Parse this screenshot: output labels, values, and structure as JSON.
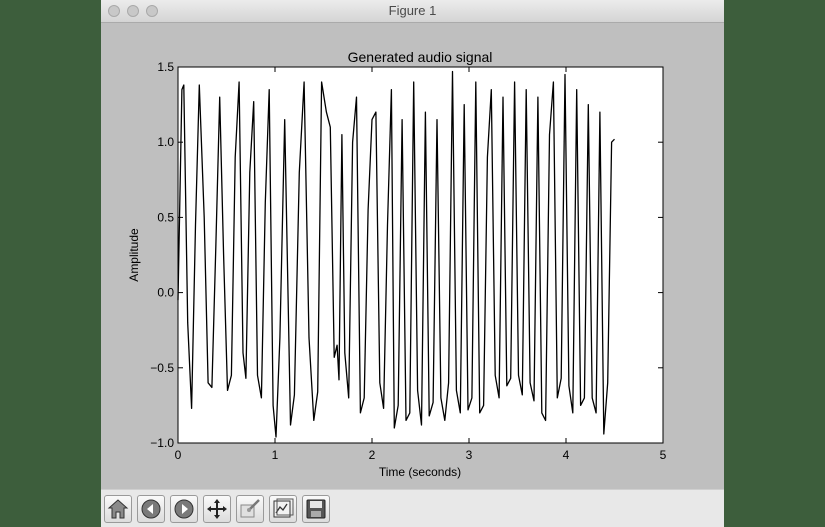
{
  "window": {
    "title": "Figure 1"
  },
  "toolbar": {
    "buttons": [
      {
        "name": "home-button",
        "icon": "home-icon"
      },
      {
        "name": "back-button",
        "icon": "back-arrow-icon"
      },
      {
        "name": "forward-button",
        "icon": "forward-arrow-icon"
      },
      {
        "name": "pan-button",
        "icon": "move-arrows-icon"
      },
      {
        "name": "zoom-button",
        "icon": "zoom-rect-icon"
      },
      {
        "name": "subplots-button",
        "icon": "subplots-config-icon"
      },
      {
        "name": "save-button",
        "icon": "floppy-disk-icon"
      }
    ]
  },
  "colors": {
    "figure_bg": "#bfbfbf",
    "plot_bg": "#ffffff",
    "line": "#000000"
  },
  "chart_data": {
    "type": "line",
    "title": "Generated audio signal",
    "xlabel": "Time (seconds)",
    "ylabel": "Amplitude",
    "xlim": [
      0,
      5
    ],
    "ylim": [
      -1.0,
      1.5
    ],
    "xticks": [
      0,
      1,
      2,
      3,
      4,
      5
    ],
    "xtick_labels": [
      "0",
      "1",
      "2",
      "3",
      "4",
      "5"
    ],
    "yticks": [
      -1.0,
      -0.5,
      0.0,
      0.5,
      1.0,
      1.5
    ],
    "ytick_labels": [
      "−1.0",
      "−0.5",
      "0.0",
      "0.5",
      "1.0",
      "1.5"
    ],
    "grid": false,
    "series": [
      {
        "x": [
          0.0,
          0.04,
          0.06,
          0.1,
          0.14,
          0.18,
          0.22,
          0.27,
          0.31,
          0.35,
          0.39,
          0.43,
          0.47,
          0.51,
          0.55,
          0.59,
          0.63,
          0.67,
          0.7,
          0.74,
          0.78,
          0.82,
          0.86,
          0.9,
          0.94,
          0.98,
          1.01,
          1.05,
          1.1,
          1.16,
          1.2,
          1.25,
          1.3,
          1.35,
          1.4,
          1.44,
          1.48,
          1.53,
          1.57,
          1.61,
          1.64,
          1.66,
          1.69,
          1.72,
          1.76,
          1.8,
          1.84,
          1.88,
          1.92,
          1.96,
          2.0,
          2.04,
          2.08,
          2.12,
          2.16,
          2.2,
          2.23,
          2.27,
          2.31,
          2.35,
          2.39,
          2.43,
          2.47,
          2.51,
          2.55,
          2.59,
          2.63,
          2.67,
          2.71,
          2.75,
          2.79,
          2.83,
          2.87,
          2.91,
          2.95,
          2.99,
          3.03,
          3.07,
          3.11,
          3.15,
          3.19,
          3.23,
          3.27,
          3.31,
          3.35,
          3.39,
          3.43,
          3.47,
          3.51,
          3.55,
          3.59,
          3.63,
          3.67,
          3.71,
          3.75,
          3.79,
          3.83,
          3.87,
          3.91,
          3.95,
          3.99,
          4.03,
          4.07,
          4.11,
          4.15,
          4.19,
          4.23,
          4.27,
          4.31,
          4.35,
          4.39,
          4.43,
          4.47,
          4.5
        ],
        "y": [
          -0.05,
          1.35,
          1.38,
          -0.2,
          -0.77,
          0.45,
          1.38,
          0.5,
          -0.6,
          -0.63,
          0.3,
          1.3,
          0.25,
          -0.65,
          -0.55,
          0.9,
          1.4,
          -0.4,
          -0.57,
          0.8,
          1.27,
          -0.55,
          -0.7,
          0.6,
          1.35,
          -0.75,
          -0.96,
          -0.3,
          1.15,
          -0.88,
          -0.68,
          0.8,
          1.4,
          -0.3,
          -0.85,
          -0.66,
          1.4,
          1.2,
          1.1,
          -0.43,
          -0.35,
          -0.58,
          1.05,
          -0.4,
          -0.7,
          1.0,
          1.3,
          -0.8,
          -0.7,
          0.55,
          1.15,
          1.2,
          -0.6,
          -0.77,
          0.45,
          1.35,
          -0.9,
          -0.75,
          1.15,
          -0.85,
          -0.8,
          1.4,
          -0.65,
          -0.88,
          1.2,
          -0.82,
          -0.73,
          1.15,
          -0.7,
          -0.85,
          -0.6,
          1.47,
          -0.65,
          -0.8,
          1.25,
          -0.78,
          -0.7,
          1.4,
          -0.8,
          -0.75,
          0.9,
          1.35,
          -0.55,
          -0.7,
          1.3,
          -0.62,
          -0.57,
          1.4,
          -0.55,
          -0.68,
          1.35,
          -0.6,
          -0.72,
          1.3,
          -0.8,
          -0.85,
          1.05,
          1.4,
          -0.7,
          -0.57,
          1.45,
          -0.62,
          -0.8,
          1.35,
          -0.75,
          -0.7,
          1.25,
          -0.7,
          -0.8,
          1.2,
          -0.94,
          -0.6,
          1.0,
          1.02
        ]
      }
    ]
  }
}
